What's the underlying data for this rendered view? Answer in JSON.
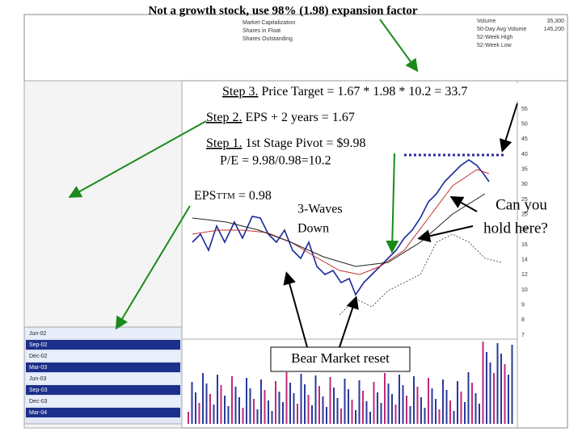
{
  "title": "Not a growth stock, use 98% (1.98) expansion factor",
  "header": [
    {
      "label": "Volume",
      "value": "35,300"
    },
    {
      "label": "50-Day Avg Volume",
      "value": "145,200"
    },
    {
      "label": "52-Week High",
      "value": ""
    },
    {
      "label": "52-Week Low",
      "value": ""
    }
  ],
  "header_left": [
    "Market Capitalization",
    "Shares in Float",
    "Shares Outstanding"
  ],
  "quarters": [
    "Jun-02",
    "Sep-02",
    "Dec-02",
    "Mar-03",
    "Jun-03",
    "Sep-03",
    "Dec-03",
    "Mar-04"
  ],
  "axis_labels": [
    "55",
    "50",
    "45",
    "40",
    "35",
    "30",
    "25",
    "20",
    "18",
    "16",
    "14",
    "12",
    "10",
    "9",
    "8",
    "7"
  ],
  "annotations": {
    "step3": {
      "step": "Step 3.",
      "text": "Price Target = 1.67 * 1.98 * 10.2 = 33.7"
    },
    "step2": {
      "step": "Step 2.",
      "text": "EPS + 2 years = 1.67"
    },
    "step1": {
      "step": "Step 1.",
      "text": "1st Stage Pivot = $9.98"
    },
    "pe": "P/E = 9.98/0.98=10.2",
    "eps_ttm": {
      "prefix": "EPS",
      "sub": "TTM",
      "rest": "= 0.98"
    },
    "waves": [
      "3-Waves",
      "Down"
    ],
    "hold": [
      "Can you",
      "hold here?"
    ],
    "bear": "Bear Market reset"
  }
}
